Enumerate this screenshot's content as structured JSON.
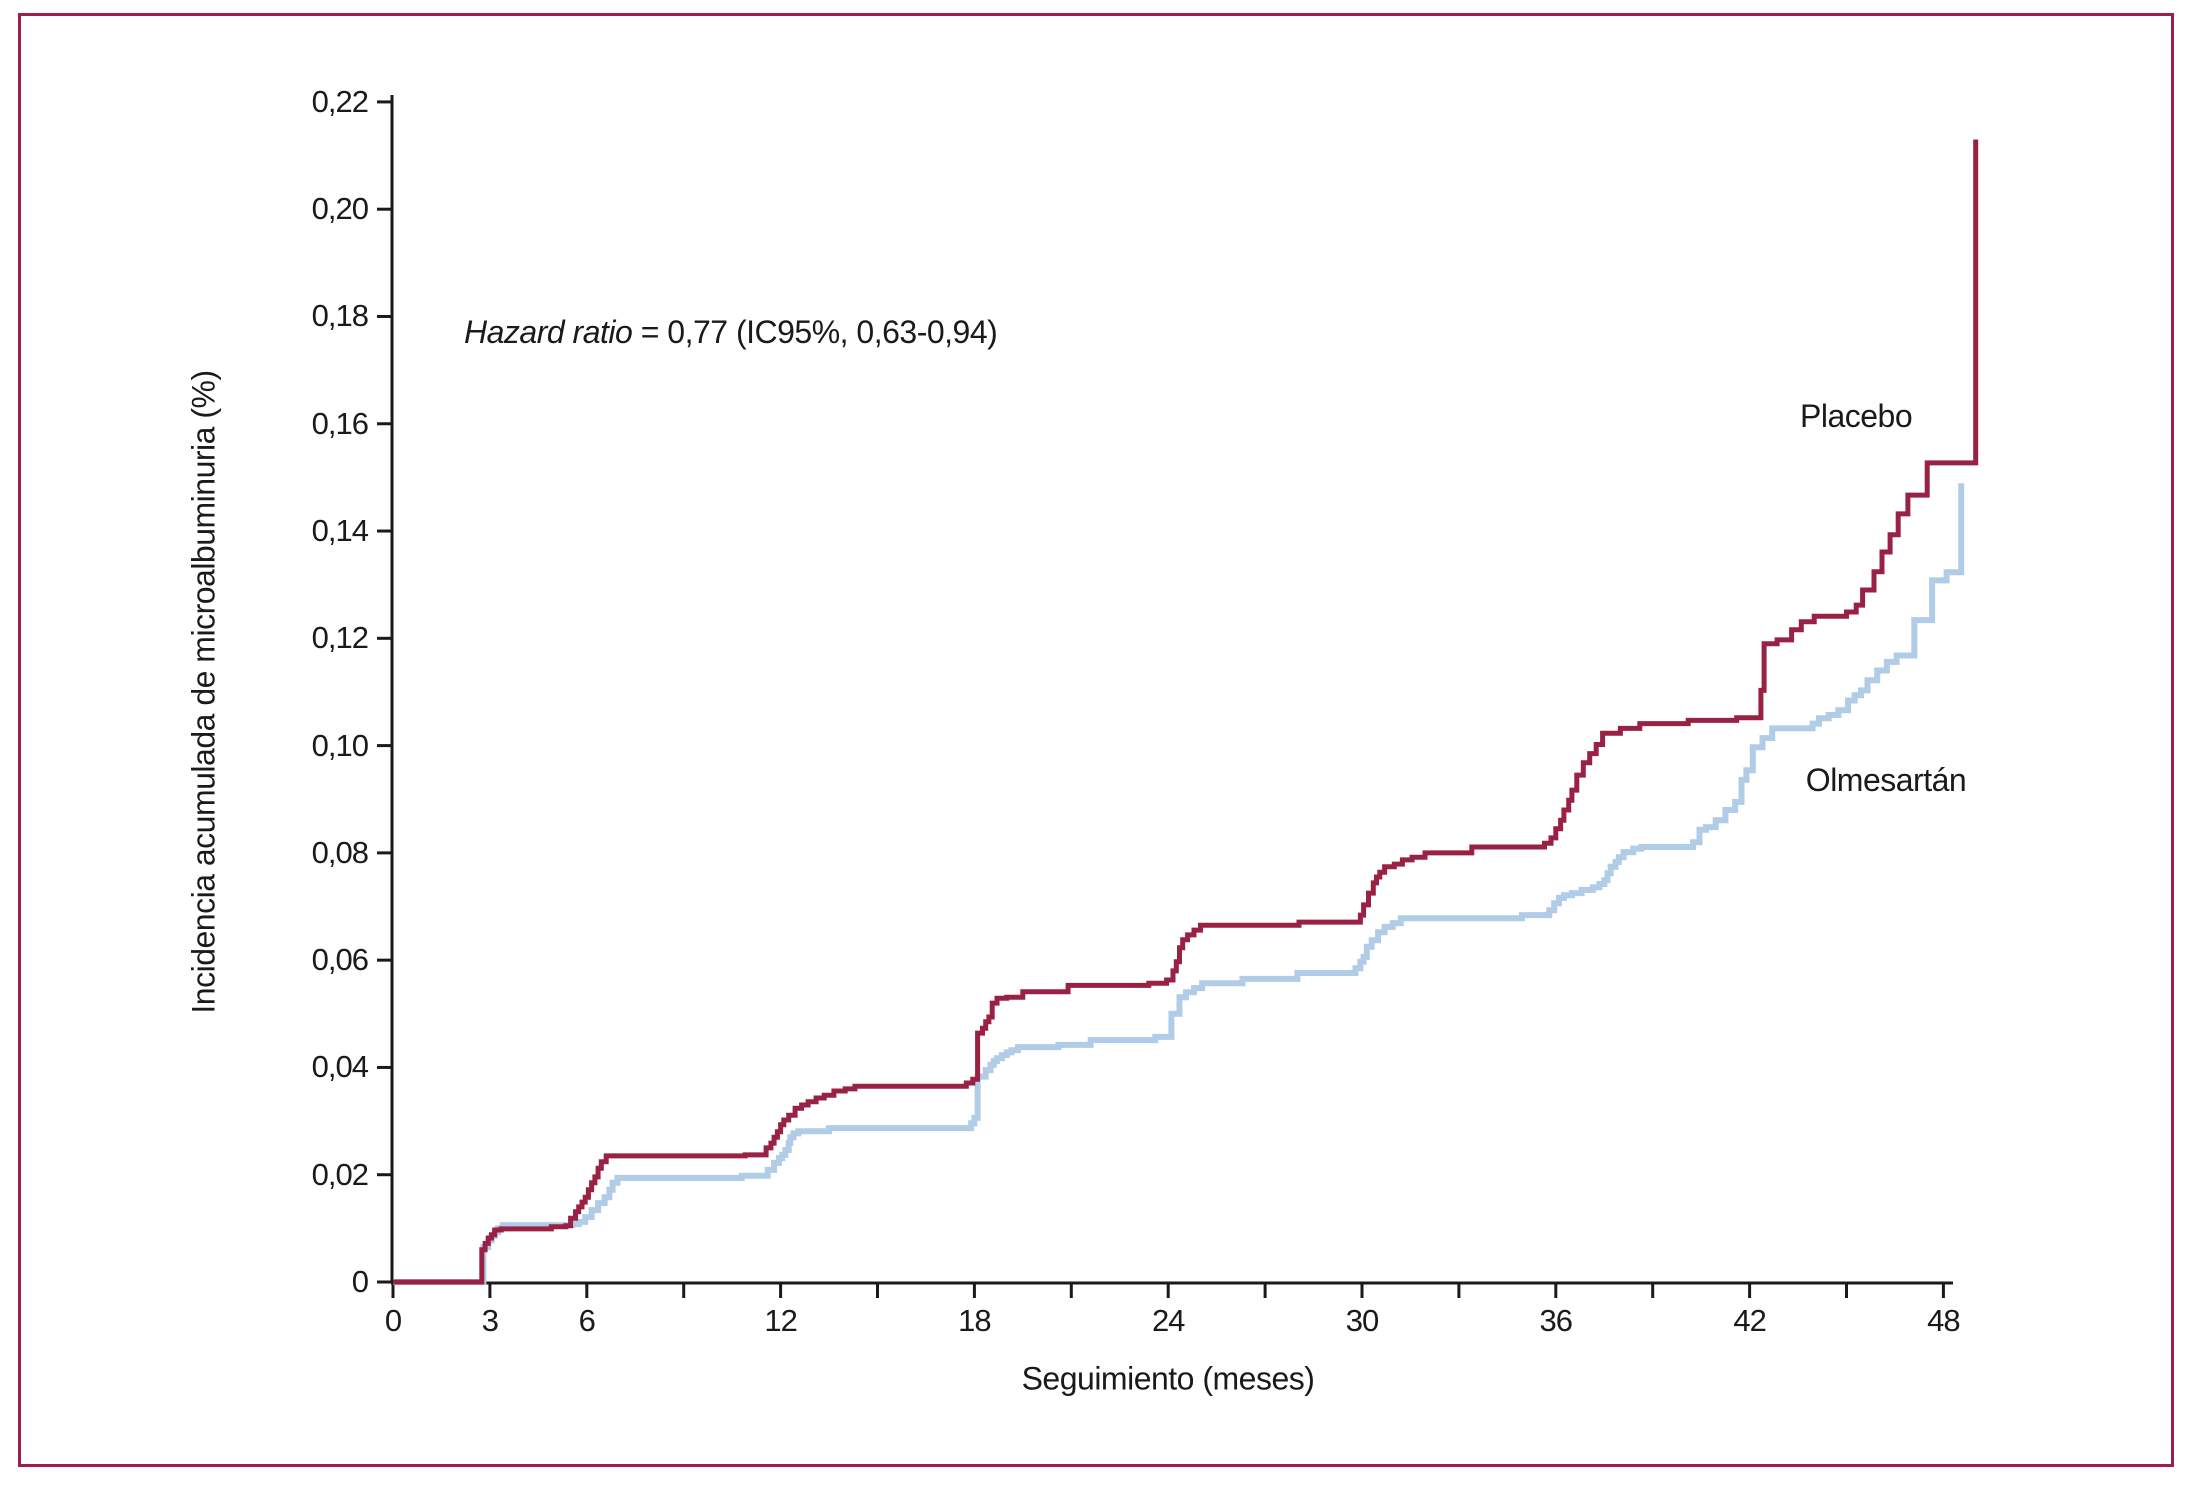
{
  "figure": {
    "border_color": "#9E1E4F",
    "background_color": "#FFFFFF",
    "axis_color": "#1A1A1A"
  },
  "chart_data": {
    "type": "line",
    "subtype": "cumulative-incidence-step",
    "title": "",
    "annotation": {
      "italic": "Hazard ratio",
      "rest": " = 0,77 (IC95%, 0,63-0,94)"
    },
    "xlabel": "Seguimiento (meses)",
    "ylabel": "Incidencia acumulada de microalbuminuria (%)",
    "xlim": [
      0,
      49.6
    ],
    "ylim": [
      0,
      0.22
    ],
    "grid": false,
    "legend_position": "inline-labels",
    "x_ticks": {
      "labeled_values": [
        0,
        3,
        6,
        12,
        18,
        24,
        30,
        36,
        42,
        48
      ],
      "labels": [
        "0",
        "3",
        "6",
        "12",
        "18",
        "24",
        "30",
        "36",
        "42",
        "48"
      ],
      "minor_values": [
        9,
        15,
        21,
        27,
        33,
        39,
        45
      ]
    },
    "y_ticks": {
      "values": [
        0,
        0.02,
        0.04,
        0.06,
        0.08,
        0.1,
        0.12,
        0.14,
        0.16,
        0.18,
        0.2,
        0.22
      ],
      "labels": [
        "0",
        "0,02",
        "0,04",
        "0,06",
        "0,08",
        "0,10",
        "0,12",
        "0,14",
        "0,16",
        "0,18",
        "0,20",
        "0,22"
      ]
    },
    "series": [
      {
        "name": "Olmesartán",
        "color": "#B0CCE6",
        "stroke_width": 6,
        "label_position": {
          "month": 43.74,
          "value": 0.0934
        },
        "points": [
          [
            0,
            0
          ],
          [
            2.8,
            0.0065
          ],
          [
            2.95,
            0.0078
          ],
          [
            3.05,
            0.0086
          ],
          [
            3.15,
            0.0093
          ],
          [
            3.25,
            0.01
          ],
          [
            3.4,
            0.0106
          ],
          [
            5.55,
            0.0108
          ],
          [
            5.75,
            0.0112
          ],
          [
            5.95,
            0.0121
          ],
          [
            6.15,
            0.0134
          ],
          [
            6.35,
            0.0147
          ],
          [
            6.55,
            0.0158
          ],
          [
            6.7,
            0.0172
          ],
          [
            6.8,
            0.0185
          ],
          [
            6.95,
            0.0194
          ],
          [
            10.8,
            0.0198
          ],
          [
            11.6,
            0.0209
          ],
          [
            11.8,
            0.0222
          ],
          [
            11.95,
            0.0231
          ],
          [
            12.05,
            0.0237
          ],
          [
            12.15,
            0.0246
          ],
          [
            12.25,
            0.0259
          ],
          [
            12.3,
            0.027
          ],
          [
            12.4,
            0.0277
          ],
          [
            12.55,
            0.0281
          ],
          [
            13.5,
            0.0287
          ],
          [
            17.9,
            0.0296
          ],
          [
            18.0,
            0.0306
          ],
          [
            18.1,
            0.0383
          ],
          [
            18.35,
            0.0395
          ],
          [
            18.5,
            0.0405
          ],
          [
            18.6,
            0.0412
          ],
          [
            18.7,
            0.0417
          ],
          [
            18.85,
            0.0423
          ],
          [
            19.0,
            0.0428
          ],
          [
            19.15,
            0.0432
          ],
          [
            19.35,
            0.0438
          ],
          [
            20.6,
            0.0442
          ],
          [
            21.6,
            0.0451
          ],
          [
            23.6,
            0.0457
          ],
          [
            24.1,
            0.05
          ],
          [
            24.35,
            0.0531
          ],
          [
            24.55,
            0.054
          ],
          [
            24.8,
            0.0548
          ],
          [
            25.05,
            0.0557
          ],
          [
            26.3,
            0.0565
          ],
          [
            28.0,
            0.0576
          ],
          [
            29.8,
            0.0585
          ],
          [
            29.95,
            0.0597
          ],
          [
            30.05,
            0.0606
          ],
          [
            30.15,
            0.0625
          ],
          [
            30.3,
            0.0637
          ],
          [
            30.5,
            0.0652
          ],
          [
            30.7,
            0.0662
          ],
          [
            30.95,
            0.0669
          ],
          [
            31.2,
            0.0678
          ],
          [
            34.95,
            0.0684
          ],
          [
            35.8,
            0.0693
          ],
          [
            35.95,
            0.0706
          ],
          [
            36.1,
            0.0716
          ],
          [
            36.25,
            0.0721
          ],
          [
            36.5,
            0.0725
          ],
          [
            36.8,
            0.0731
          ],
          [
            37.15,
            0.0736
          ],
          [
            37.35,
            0.0742
          ],
          [
            37.5,
            0.0749
          ],
          [
            37.6,
            0.0762
          ],
          [
            37.7,
            0.0774
          ],
          [
            37.85,
            0.0783
          ],
          [
            37.95,
            0.0792
          ],
          [
            38.1,
            0.0801
          ],
          [
            38.4,
            0.0808
          ],
          [
            38.65,
            0.0811
          ],
          [
            40.25,
            0.082
          ],
          [
            40.45,
            0.0843
          ],
          [
            40.65,
            0.0848
          ],
          [
            40.95,
            0.0861
          ],
          [
            41.25,
            0.088
          ],
          [
            41.55,
            0.0895
          ],
          [
            41.75,
            0.0936
          ],
          [
            41.9,
            0.0954
          ],
          [
            42.1,
            0.0997
          ],
          [
            42.4,
            0.1014
          ],
          [
            42.7,
            0.1032
          ],
          [
            43.95,
            0.1041
          ],
          [
            44.15,
            0.1051
          ],
          [
            44.45,
            0.1057
          ],
          [
            44.75,
            0.1066
          ],
          [
            45.05,
            0.1084
          ],
          [
            45.25,
            0.1094
          ],
          [
            45.45,
            0.1103
          ],
          [
            45.65,
            0.1122
          ],
          [
            45.95,
            0.114
          ],
          [
            46.25,
            0.1156
          ],
          [
            46.55,
            0.1168
          ],
          [
            47.1,
            0.1234
          ],
          [
            47.65,
            0.1308
          ],
          [
            48.1,
            0.1323
          ],
          [
            48.55,
            0.1489
          ]
        ]
      },
      {
        "name": "Placebo",
        "color": "#992244",
        "stroke_width": 5,
        "label_position": {
          "month": 43.56,
          "value": 0.1613
        },
        "points": [
          [
            0,
            0
          ],
          [
            2.75,
            0.006
          ],
          [
            2.85,
            0.0072
          ],
          [
            2.95,
            0.0082
          ],
          [
            3.05,
            0.0088
          ],
          [
            3.15,
            0.0097
          ],
          [
            3.35,
            0.0099
          ],
          [
            4.9,
            0.0103
          ],
          [
            5.35,
            0.0105
          ],
          [
            5.5,
            0.0119
          ],
          [
            5.65,
            0.0131
          ],
          [
            5.75,
            0.014
          ],
          [
            5.85,
            0.0149
          ],
          [
            5.95,
            0.0158
          ],
          [
            6.05,
            0.0172
          ],
          [
            6.15,
            0.0185
          ],
          [
            6.25,
            0.0196
          ],
          [
            6.35,
            0.0212
          ],
          [
            6.45,
            0.0224
          ],
          [
            6.6,
            0.0235
          ],
          [
            10.9,
            0.0237
          ],
          [
            11.55,
            0.025
          ],
          [
            11.7,
            0.0259
          ],
          [
            11.8,
            0.027
          ],
          [
            11.9,
            0.028
          ],
          [
            12.0,
            0.0293
          ],
          [
            12.1,
            0.0302
          ],
          [
            12.25,
            0.0311
          ],
          [
            12.45,
            0.0324
          ],
          [
            12.65,
            0.033
          ],
          [
            12.85,
            0.0336
          ],
          [
            13.1,
            0.0343
          ],
          [
            13.35,
            0.0348
          ],
          [
            13.65,
            0.0356
          ],
          [
            14.0,
            0.036
          ],
          [
            14.3,
            0.0365
          ],
          [
            17.75,
            0.0371
          ],
          [
            17.95,
            0.0378
          ],
          [
            18.1,
            0.0464
          ],
          [
            18.25,
            0.0473
          ],
          [
            18.35,
            0.0485
          ],
          [
            18.45,
            0.0494
          ],
          [
            18.55,
            0.052
          ],
          [
            18.7,
            0.0529
          ],
          [
            19.0,
            0.0531
          ],
          [
            19.5,
            0.0541
          ],
          [
            20.9,
            0.0553
          ],
          [
            23.4,
            0.0557
          ],
          [
            23.95,
            0.0563
          ],
          [
            24.15,
            0.058
          ],
          [
            24.25,
            0.0597
          ],
          [
            24.35,
            0.0623
          ],
          [
            24.45,
            0.0638
          ],
          [
            24.6,
            0.0647
          ],
          [
            24.8,
            0.0656
          ],
          [
            25.0,
            0.0665
          ],
          [
            28.05,
            0.0671
          ],
          [
            29.95,
            0.0684
          ],
          [
            30.05,
            0.0703
          ],
          [
            30.2,
            0.0725
          ],
          [
            30.35,
            0.0744
          ],
          [
            30.45,
            0.0755
          ],
          [
            30.55,
            0.0764
          ],
          [
            30.7,
            0.0774
          ],
          [
            31.0,
            0.0779
          ],
          [
            31.25,
            0.0787
          ],
          [
            31.55,
            0.0792
          ],
          [
            31.95,
            0.08
          ],
          [
            33.4,
            0.0811
          ],
          [
            35.65,
            0.0818
          ],
          [
            35.85,
            0.0828
          ],
          [
            36.0,
            0.0845
          ],
          [
            36.15,
            0.0861
          ],
          [
            36.25,
            0.088
          ],
          [
            36.4,
            0.0898
          ],
          [
            36.5,
            0.0917
          ],
          [
            36.65,
            0.0945
          ],
          [
            36.85,
            0.0968
          ],
          [
            37.05,
            0.0985
          ],
          [
            37.25,
            0.1002
          ],
          [
            37.45,
            0.1023
          ],
          [
            38.0,
            0.1032
          ],
          [
            38.6,
            0.1041
          ],
          [
            40.1,
            0.1047
          ],
          [
            41.6,
            0.1052
          ],
          [
            42.35,
            0.1103
          ],
          [
            42.45,
            0.119
          ],
          [
            42.85,
            0.1197
          ],
          [
            43.3,
            0.1216
          ],
          [
            43.6,
            0.1231
          ],
          [
            44.0,
            0.1241
          ],
          [
            45.0,
            0.1249
          ],
          [
            45.3,
            0.1262
          ],
          [
            45.5,
            0.129
          ],
          [
            45.85,
            0.1324
          ],
          [
            46.1,
            0.1361
          ],
          [
            46.35,
            0.1393
          ],
          [
            46.6,
            0.1432
          ],
          [
            46.9,
            0.1467
          ],
          [
            47.5,
            0.1527
          ],
          [
            49.0,
            0.213
          ]
        ]
      }
    ]
  }
}
